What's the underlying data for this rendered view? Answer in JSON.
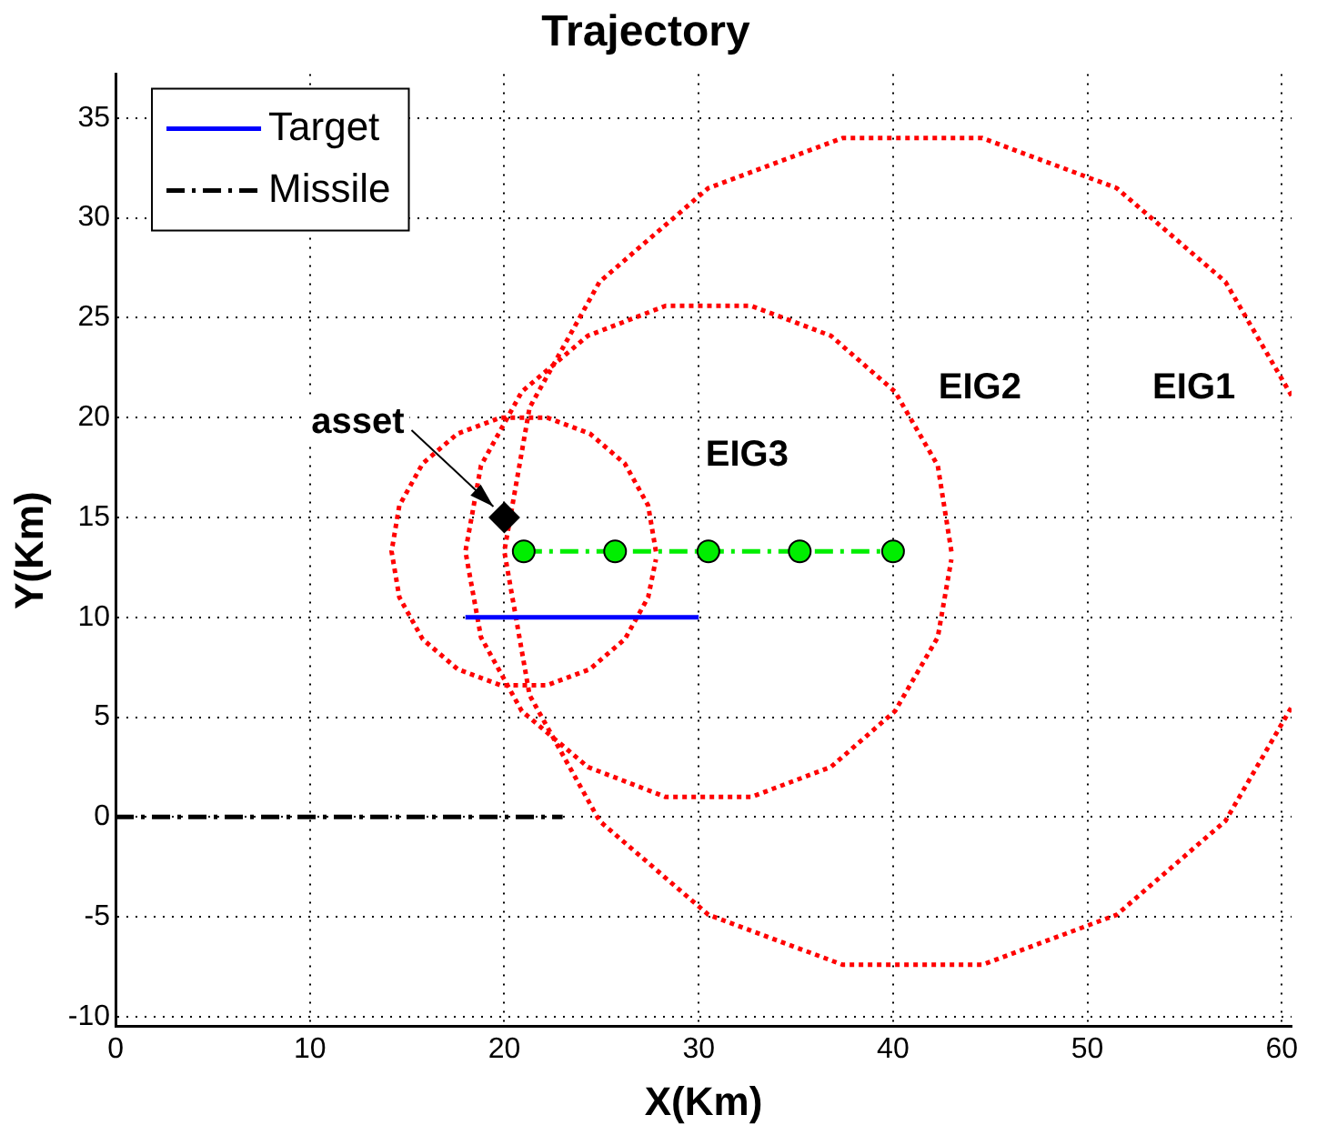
{
  "chart_data": {
    "type": "line",
    "title": "Trajectory",
    "xlabel": "X(Km)",
    "ylabel": "Y(Km)",
    "xlim": [
      0,
      60.5
    ],
    "ylim": [
      -10.5,
      37.2
    ],
    "xticks": [
      0,
      10,
      20,
      30,
      40,
      50,
      60
    ],
    "yticks": [
      -10,
      -5,
      0,
      5,
      10,
      15,
      20,
      25,
      30,
      35
    ],
    "grid": true,
    "legend": "top left",
    "series": [
      {
        "name": "Target",
        "color": "#0000ff",
        "line_style": "solid",
        "marker": "none",
        "x": [
          18,
          30
        ],
        "values": [
          10,
          10
        ]
      },
      {
        "name": "Missile",
        "color": "#000000",
        "line_style": "dashed",
        "marker": "none",
        "x": [
          0,
          23
        ],
        "values": [
          0,
          0
        ]
      },
      {
        "color": "#00ee00",
        "line_style": "dashed",
        "marker": "circle",
        "x": [
          21,
          25.7,
          30.5,
          35.2,
          40
        ],
        "values": [
          13.3,
          13.3,
          13.3,
          13.3,
          13.3
        ]
      },
      {
        "type": "scatter",
        "color": "#000000",
        "marker": "diamond",
        "x": [
          20
        ],
        "values": [
          15
        ]
      },
      {
        "color": "#ff0000",
        "line_style": "dotted",
        "marker": "none",
        "x": [
          60.5,
          57.1,
          51.5,
          44.6,
          37.4,
          30.5,
          24.9,
          21.3,
          20.0,
          21.3,
          24.9,
          30.5,
          37.4,
          44.6,
          51.5,
          57.1,
          60.5
        ],
        "values": [
          21.1,
          26.8,
          31.5,
          34.0,
          34.0,
          31.5,
          26.8,
          20.5,
          13.3,
          6.1,
          -0.2,
          -4.9,
          -7.4,
          -7.4,
          -4.9,
          -0.2,
          5.5
        ]
      },
      {
        "color": "#ff0000",
        "line_style": "dotted",
        "marker": "none",
        "x": [
          43.0,
          42.3,
          40.1,
          36.8,
          32.7,
          28.3,
          24.3,
          20.9,
          18.8,
          18.0,
          18.8,
          20.9,
          24.3,
          28.3,
          32.7,
          36.8,
          40.1,
          42.3,
          43.0
        ],
        "values": [
          13.3,
          17.6,
          21.3,
          24.1,
          25.6,
          25.6,
          24.1,
          21.3,
          17.6,
          13.3,
          9.0,
          5.3,
          2.5,
          1.0,
          1.0,
          2.5,
          5.3,
          9.0,
          12.9
        ]
      },
      {
        "color": "#ff0000",
        "line_style": "dotted",
        "marker": "none",
        "x": [
          27.8,
          27.4,
          26.2,
          24.4,
          22.2,
          19.8,
          17.6,
          15.8,
          14.6,
          14.2,
          14.6,
          15.8,
          17.6,
          19.8,
          22.2,
          24.4,
          26.2,
          27.4,
          27.8
        ],
        "values": [
          13.3,
          15.6,
          17.7,
          19.2,
          20.0,
          20.0,
          19.2,
          17.7,
          15.6,
          13.3,
          11.0,
          8.9,
          7.4,
          6.6,
          6.6,
          7.4,
          8.9,
          11.0,
          12.9
        ]
      }
    ],
    "annotations": [
      {
        "text": "asset",
        "x": 20,
        "y": 15
      },
      "EIG1",
      "EIG2",
      "EIG3"
    ]
  }
}
